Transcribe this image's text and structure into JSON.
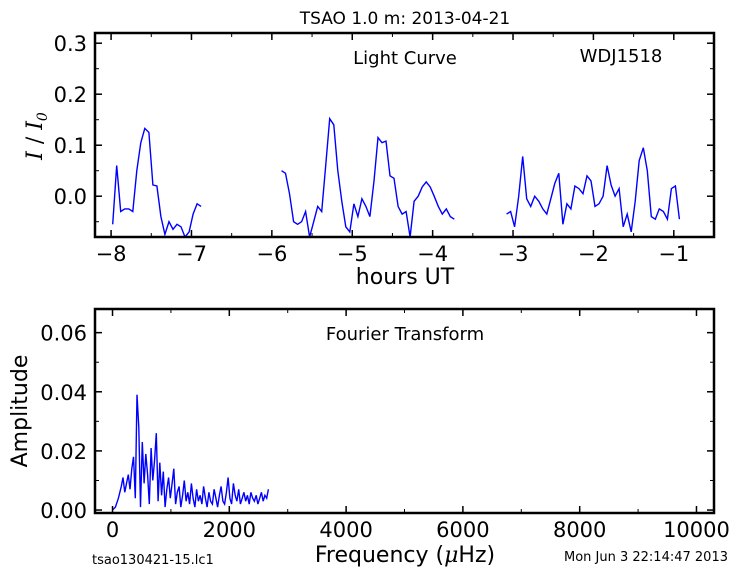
{
  "figure": {
    "title": "TSAO 1.0 m:  2013-04-21",
    "footer_left": "tsao130421-15.lc1",
    "footer_right": "Mon Jun  3 22:14:47 2013"
  },
  "chart_data": [
    {
      "type": "line",
      "title": "Light Curve",
      "annotation": "WDJ1518",
      "xlabel": "hours UT",
      "ylabel_main": "I",
      "ylabel_sep": " / ",
      "ylabel_base": "I",
      "ylabel_sub": "0",
      "xlim": [
        -8.2,
        -0.5
      ],
      "ylim": [
        -0.08,
        0.32
      ],
      "xticks": [
        -8,
        -7,
        -6,
        -5,
        -4,
        -3,
        -2,
        -1
      ],
      "xtick_labels": [
        "−8",
        "−7",
        "−6",
        "−5",
        "−4",
        "−3",
        "−2",
        "−1"
      ],
      "yticks": [
        0.0,
        0.1,
        0.2,
        0.3
      ],
      "ytick_labels": [
        "0.0",
        "0.1",
        "0.2",
        "0.3"
      ],
      "color": "#0000ff",
      "segments": [
        {
          "x": [
            -7.98,
            -7.93,
            -7.88,
            -7.83,
            -7.78,
            -7.73,
            -7.68,
            -7.63,
            -7.58,
            -7.53,
            -7.48,
            -7.43,
            -7.38,
            -7.33,
            -7.28,
            -7.23,
            -7.18,
            -7.13,
            -7.08,
            -7.03,
            -6.98,
            -6.93,
            -6.88
          ],
          "y": [
            -0.055,
            0.06,
            -0.03,
            -0.025,
            -0.025,
            -0.03,
            0.05,
            0.105,
            0.133,
            0.125,
            0.022,
            0.02,
            -0.04,
            -0.075,
            -0.05,
            -0.065,
            -0.055,
            -0.06,
            -0.08,
            -0.07,
            -0.035,
            -0.015,
            -0.02
          ]
        },
        {
          "x": [
            -5.88,
            -5.83,
            -5.78,
            -5.73,
            -5.68,
            -5.63,
            -5.58,
            -5.53,
            -5.48,
            -5.43,
            -5.38,
            -5.33,
            -5.28,
            -5.23,
            -5.18,
            -5.13,
            -5.08,
            -5.03,
            -4.98,
            -4.93,
            -4.88,
            -4.83,
            -4.78,
            -4.73,
            -4.68,
            -4.63,
            -4.58,
            -4.53,
            -4.48,
            -4.43,
            -4.38,
            -4.33,
            -4.28,
            -4.23,
            -4.18,
            -4.13,
            -4.08,
            -4.03,
            -3.98,
            -3.93,
            -3.88,
            -3.83,
            -3.78,
            -3.73
          ],
          "y": [
            0.05,
            0.045,
            0.005,
            -0.05,
            -0.055,
            -0.05,
            -0.03,
            -0.08,
            -0.05,
            -0.02,
            -0.03,
            0.06,
            0.152,
            0.14,
            0.05,
            -0.01,
            -0.06,
            -0.07,
            -0.015,
            -0.04,
            -0.005,
            -0.02,
            -0.04,
            0.03,
            0.115,
            0.105,
            0.108,
            0.04,
            0.035,
            -0.02,
            -0.035,
            -0.03,
            -0.08,
            -0.01,
            0.0,
            0.018,
            0.028,
            0.018,
            0.0,
            -0.02,
            -0.035,
            -0.025,
            -0.04,
            -0.045
          ]
        },
        {
          "x": [
            -3.08,
            -3.03,
            -2.98,
            -2.93,
            -2.88,
            -2.83,
            -2.78,
            -2.73,
            -2.68,
            -2.63,
            -2.58,
            -2.53,
            -2.48,
            -2.43,
            -2.38,
            -2.33,
            -2.28,
            -2.23,
            -2.18,
            -2.13,
            -2.08,
            -2.03,
            -1.98,
            -1.93,
            -1.88,
            -1.83,
            -1.78,
            -1.73,
            -1.68,
            -1.63,
            -1.58,
            -1.53,
            -1.48,
            -1.43,
            -1.38,
            -1.33,
            -1.28,
            -1.23,
            -1.18,
            -1.13,
            -1.08,
            -1.03,
            -0.98,
            -0.93
          ],
          "y": [
            -0.035,
            -0.03,
            -0.06,
            0.0,
            0.078,
            -0.005,
            -0.02,
            0.0,
            -0.01,
            -0.025,
            -0.035,
            -0.005,
            0.025,
            0.045,
            -0.055,
            -0.015,
            -0.025,
            0.02,
            0.015,
            0.005,
            0.04,
            0.03,
            -0.02,
            -0.015,
            0.0,
            0.06,
            0.022,
            0.0,
            0.015,
            -0.06,
            -0.035,
            -0.07,
            -0.01,
            0.07,
            0.095,
            0.05,
            -0.04,
            -0.045,
            -0.025,
            -0.03,
            -0.045,
            0.015,
            0.02,
            -0.045
          ]
        }
      ]
    },
    {
      "type": "line",
      "title": "Fourier Transform",
      "xlabel_prefix": "Frequency (",
      "xlabel_mu": "μ",
      "xlabel_suffix": "Hz)",
      "ylabel": "Amplitude",
      "xlim": [
        -300,
        10300
      ],
      "ylim": [
        -0.001,
        0.068
      ],
      "xticks": [
        0,
        2000,
        4000,
        6000,
        8000,
        10000
      ],
      "xtick_labels": [
        "0",
        "2000",
        "4000",
        "6000",
        "8000",
        "10000"
      ],
      "yticks": [
        0.0,
        0.02,
        0.04,
        0.06
      ],
      "ytick_labels": [
        "0.00",
        "0.02",
        "0.04",
        "0.06"
      ],
      "color": "#0000ff",
      "x": [
        0,
        50,
        100,
        150,
        180,
        210,
        240,
        270,
        300,
        330,
        360,
        390,
        420,
        450,
        480,
        510,
        540,
        570,
        600,
        630,
        660,
        690,
        720,
        750,
        780,
        810,
        840,
        870,
        900,
        930,
        960,
        990,
        1020,
        1050,
        1080,
        1110,
        1140,
        1170,
        1200,
        1230,
        1260,
        1290,
        1320,
        1350,
        1380,
        1410,
        1440,
        1470,
        1500,
        1530,
        1560,
        1590,
        1620,
        1650,
        1680,
        1710,
        1740,
        1770,
        1800,
        1830,
        1860,
        1890,
        1920,
        1950,
        1980,
        2010,
        2040,
        2070,
        2100,
        2130,
        2160,
        2190,
        2220,
        2250,
        2280,
        2310,
        2340,
        2370,
        2400,
        2430,
        2460,
        2490,
        2520,
        2550,
        2580,
        2610,
        2640,
        2670
      ],
      "y": [
        0.0,
        0.001,
        0.004,
        0.008,
        0.011,
        0.006,
        0.009,
        0.012,
        0.007,
        0.014,
        0.018,
        0.004,
        0.039,
        0.028,
        0.001,
        0.023,
        0.009,
        0.019,
        0.012,
        0.002,
        0.021,
        0.01,
        0.017,
        0.026,
        0.003,
        0.016,
        0.005,
        0.013,
        0.001,
        0.007,
        0.011,
        0.004,
        0.009,
        0.014,
        0.002,
        0.006,
        0.008,
        0.001,
        0.005,
        0.01,
        0.003,
        0.006,
        0.002,
        0.009,
        0.004,
        0.001,
        0.007,
        0.003,
        0.005,
        0.002,
        0.008,
        0.004,
        0.001,
        0.006,
        0.003,
        0.002,
        0.007,
        0.004,
        0.001,
        0.005,
        0.008,
        0.003,
        0.002,
        0.006,
        0.011,
        0.004,
        0.002,
        0.009,
        0.005,
        0.003,
        0.007,
        0.002,
        0.004,
        0.006,
        0.003,
        0.005,
        0.002,
        0.006,
        0.004,
        0.003,
        0.005,
        0.002,
        0.004,
        0.006,
        0.003,
        0.005,
        0.004,
        0.007
      ]
    }
  ]
}
